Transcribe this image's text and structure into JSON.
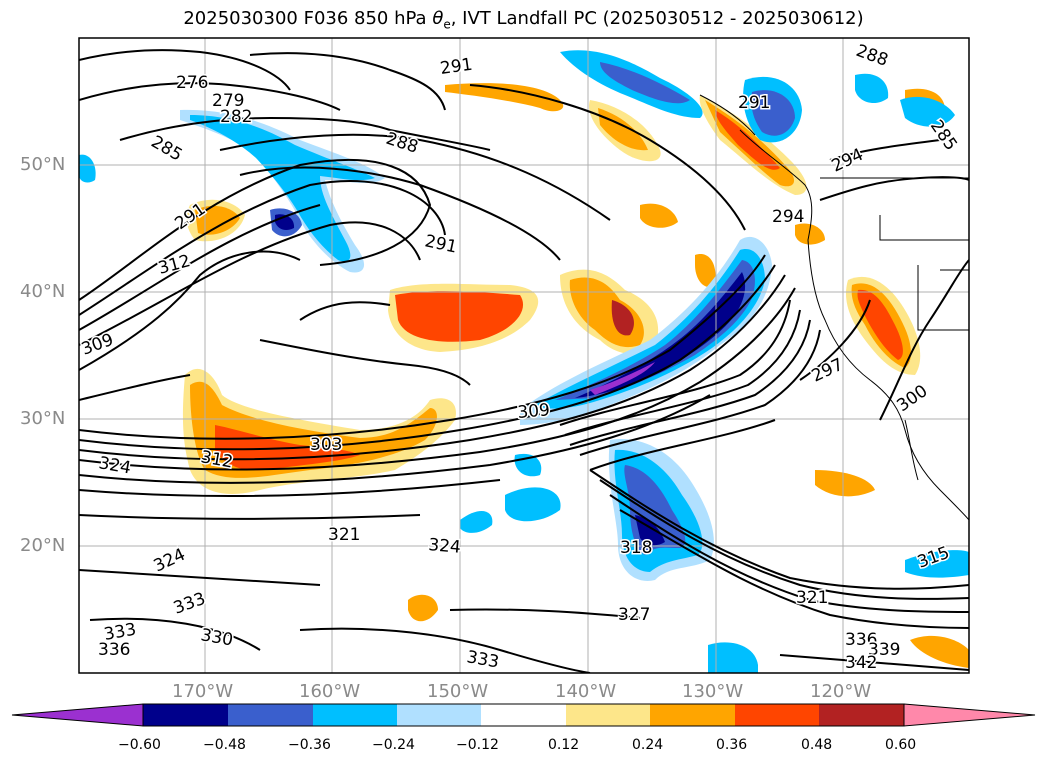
{
  "figure": {
    "title_prefix": "2025030300 F036 850 hPa ",
    "title_symbol": "θ",
    "title_sub": "e",
    "title_suffix": ", IVT Landfall PC (2025030512 - 2025030612)"
  },
  "map": {
    "lon_labels": [
      "170°W",
      "160°W",
      "150°W",
      "140°W",
      "130°W",
      "120°W"
    ],
    "lat_labels": [
      "50°N",
      "40°N",
      "30°N",
      "20°N"
    ],
    "contour_labels": [
      "276",
      "279",
      "282",
      "285",
      "288",
      "291",
      "291",
      "291",
      "291",
      "294",
      "294",
      "297",
      "300",
      "309",
      "312",
      "324",
      "303",
      "312",
      "309",
      "321",
      "324",
      "324",
      "318",
      "327",
      "321",
      "330",
      "333",
      "333",
      "333",
      "336",
      "336",
      "339",
      "342",
      "315",
      "288",
      "285"
    ],
    "colorbar": {
      "tick_labels": [
        "−0.60",
        "−0.48",
        "−0.36",
        "−0.24",
        "−0.12",
        "0.12",
        "0.24",
        "0.36",
        "0.48",
        "0.60"
      ],
      "colors": [
        "#9b30d0",
        "#00008b",
        "#3a5fcd",
        "#00bfff",
        "#b0e0ff",
        "#ffffff",
        "#fde68a",
        "#ffa500",
        "#ff4500",
        "#b22222",
        "#ff88aa"
      ]
    },
    "shading_colors": {
      "pos_weak": "#fde68a",
      "pos_mid": "#ffa500",
      "pos_strong": "#ff4500",
      "pos_max": "#b22222",
      "neg_weak": "#b0e0ff",
      "neg_mid": "#00bfff",
      "neg_strong": "#3a5fcd",
      "neg_max": "#00008b",
      "neg_ext": "#9b30d0"
    }
  }
}
